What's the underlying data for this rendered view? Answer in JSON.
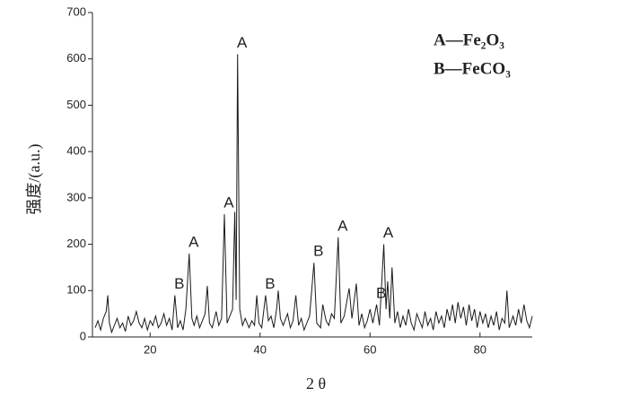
{
  "chart_data": {
    "type": "line",
    "x_label": "2 θ",
    "y_label": "强度/(a.u.)",
    "legend_entries": [
      "A—Fe₂O₃",
      "B—FeCO₃"
    ],
    "x": [
      10,
      10.5,
      11,
      11.5,
      12,
      12.3,
      12.6,
      13,
      13.5,
      14,
      14.5,
      15,
      15.5,
      16,
      16.5,
      17,
      17.5,
      18,
      18.5,
      19,
      19.5,
      20,
      20.5,
      21,
      21.5,
      22,
      22.5,
      23,
      23.5,
      24,
      24.5,
      25,
      25.5,
      26,
      26.5,
      27.1,
      27.6,
      28,
      28.5,
      29,
      29.5,
      30,
      30.4,
      30.8,
      31.3,
      32,
      32.5,
      33,
      33.5,
      34,
      34.5,
      35,
      35.4,
      35.65,
      35.9,
      36.3,
      36.8,
      37.3,
      38,
      38.5,
      39,
      39.4,
      39.8,
      40.3,
      41,
      41.5,
      42,
      42.5,
      43,
      43.3,
      43.7,
      44.2,
      45,
      45.5,
      46,
      46.5,
      47,
      47.5,
      48,
      48.5,
      49,
      49.8,
      50.3,
      51,
      51.4,
      52,
      52.5,
      53,
      53.5,
      54.2,
      54.7,
      55.3,
      56.2,
      56.7,
      57.5,
      58,
      58.5,
      59,
      59.5,
      60,
      60.5,
      61.2,
      61.7,
      62.5,
      62.9,
      63.2,
      63.6,
      64,
      64.5,
      65,
      65.5,
      66,
      66.5,
      67,
      67.5,
      68,
      68.5,
      69,
      69.5,
      70,
      70.5,
      71,
      71.5,
      72,
      72.5,
      73,
      73.5,
      74,
      74.5,
      75,
      75.5,
      76,
      76.5,
      77,
      77.5,
      78,
      78.5,
      79,
      79.5,
      80,
      80.5,
      81,
      81.5,
      82,
      82.5,
      83,
      83.5,
      84,
      84.5,
      84.9,
      85.3,
      86,
      86.5,
      87,
      87.5,
      88,
      88.5,
      89,
      89.5
    ],
    "series": [
      {
        "color": "#1a1a1a",
        "values": [
          20,
          35,
          15,
          40,
          55,
          90,
          30,
          10,
          25,
          40,
          20,
          30,
          12,
          45,
          25,
          35,
          55,
          30,
          20,
          40,
          15,
          35,
          25,
          45,
          20,
          30,
          50,
          25,
          40,
          15,
          90,
          20,
          35,
          15,
          60,
          180,
          40,
          25,
          45,
          20,
          35,
          50,
          110,
          30,
          20,
          55,
          25,
          40,
          265,
          30,
          45,
          60,
          270,
          80,
          610,
          60,
          25,
          40,
          20,
          35,
          25,
          90,
          30,
          20,
          90,
          35,
          45,
          20,
          60,
          100,
          40,
          25,
          50,
          20,
          35,
          90,
          25,
          40,
          15,
          30,
          45,
          160,
          30,
          20,
          70,
          35,
          25,
          50,
          40,
          215,
          30,
          45,
          105,
          40,
          115,
          25,
          50,
          20,
          35,
          60,
          30,
          70,
          25,
          200,
          60,
          120,
          40,
          150,
          30,
          55,
          20,
          45,
          25,
          60,
          30,
          15,
          50,
          35,
          20,
          55,
          25,
          40,
          15,
          55,
          30,
          45,
          20,
          60,
          35,
          70,
          30,
          75,
          40,
          65,
          25,
          70,
          35,
          60,
          20,
          55,
          30,
          50,
          20,
          45,
          25,
          55,
          15,
          40,
          30,
          100,
          20,
          45,
          25,
          60,
          30,
          70,
          35,
          20,
          45
        ]
      }
    ],
    "annotations": [
      {
        "text": "B",
        "x": 24.5,
        "y": 90
      },
      {
        "text": "A",
        "x": 27.1,
        "y": 180
      },
      {
        "text": "A",
        "x": 33.5,
        "y": 265
      },
      {
        "text": "A",
        "x": 35.9,
        "y": 610
      },
      {
        "text": "B",
        "x": 41,
        "y": 90
      },
      {
        "text": "B",
        "x": 49.8,
        "y": 160
      },
      {
        "text": "A",
        "x": 54.2,
        "y": 215
      },
      {
        "text": "B",
        "x": 61.2,
        "y": 70
      },
      {
        "text": "A",
        "x": 62.5,
        "y": 200
      }
    ],
    "xlim": [
      10,
      89.5
    ],
    "xticks": [
      20,
      40,
      60,
      80
    ],
    "ylim": [
      0,
      700
    ],
    "yticks": [
      0,
      100,
      200,
      300,
      400,
      500,
      600,
      700
    ]
  }
}
